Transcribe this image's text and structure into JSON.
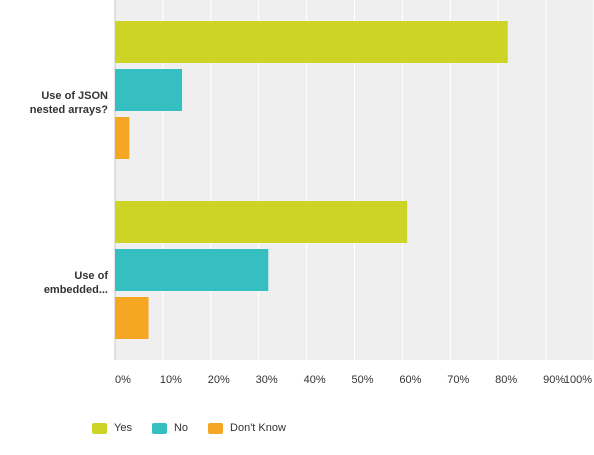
{
  "chart_data": {
    "type": "bar",
    "orientation": "horizontal",
    "categories": [
      [
        "Use of JSON",
        "nested arrays?"
      ],
      [
        "Use of",
        "embedded..."
      ]
    ],
    "series": [
      {
        "name": "Yes",
        "color": "#cdd426",
        "values": [
          82,
          61
        ]
      },
      {
        "name": "No",
        "color": "#35bfc0",
        "values": [
          14,
          32
        ]
      },
      {
        "name": "Don't Know",
        "color": "#f5a623",
        "values": [
          3,
          7
        ]
      }
    ],
    "ticks": [
      "0%",
      "10%",
      "20%",
      "30%",
      "40%",
      "50%",
      "60%",
      "70%",
      "80%",
      "90%",
      "100%"
    ],
    "xlim": [
      0,
      100
    ],
    "grid": true,
    "legend_position": "bottom-left",
    "unit": "%"
  }
}
